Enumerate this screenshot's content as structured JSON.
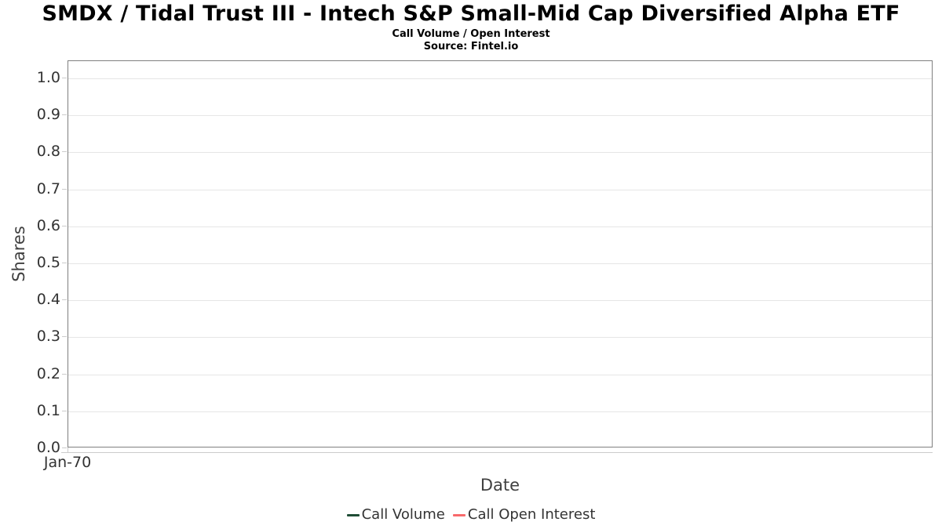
{
  "chart_data": {
    "type": "line",
    "title": "SMDX / Tidal Trust III - Intech S&P Small-Mid Cap Diversified Alpha ETF",
    "subtitle": "Call Volume / Open Interest",
    "source": "Source: Fintel.io",
    "xlabel": "Date",
    "ylabel": "Shares",
    "ylim": [
      0.0,
      1.0
    ],
    "yticks": [
      "0.0",
      "0.1",
      "0.2",
      "0.3",
      "0.4",
      "0.5",
      "0.6",
      "0.7",
      "0.8",
      "0.9",
      "1.0"
    ],
    "xticks": [
      "Jan-70"
    ],
    "grid": "horizontal",
    "legend_position": "bottom",
    "series": [
      {
        "name": "Call Volume",
        "color": "#1f4d36",
        "x": [],
        "values": []
      },
      {
        "name": "Call Open Interest",
        "color": "#f8696b",
        "x": [],
        "values": []
      }
    ]
  }
}
